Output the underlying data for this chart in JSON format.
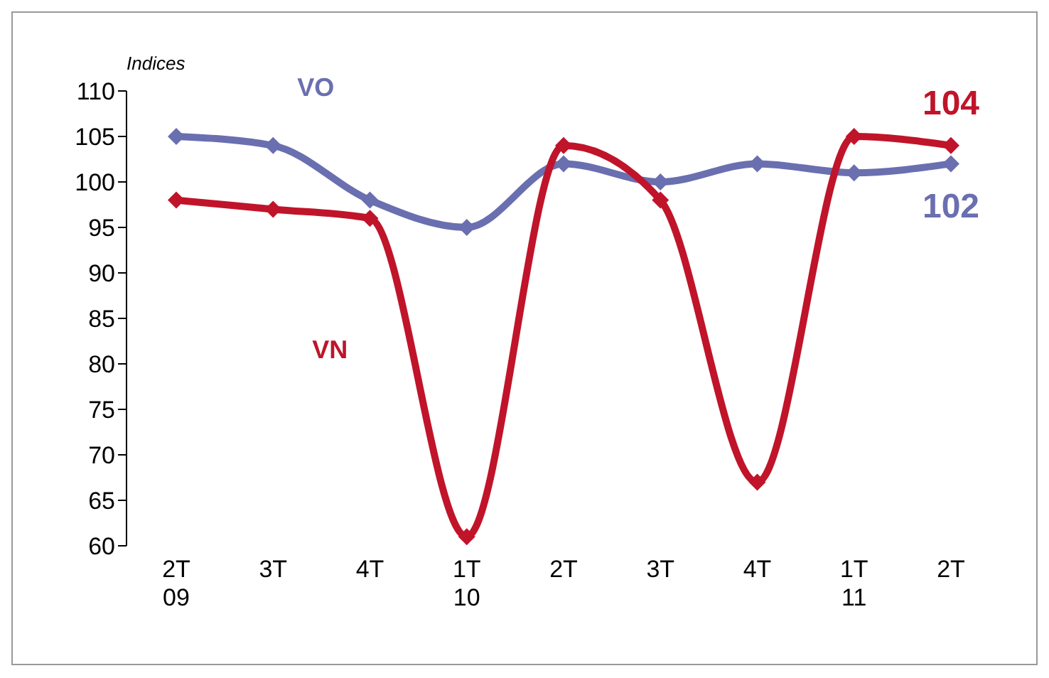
{
  "chart_data": {
    "type": "line",
    "ylabel": "Indices",
    "categories": [
      "2T\n09",
      "3T",
      "4T",
      "1T\n10",
      "2T",
      "3T",
      "4T",
      "1T\n11",
      "2T"
    ],
    "series": [
      {
        "name": "VO",
        "color": "#6a6fb0",
        "values": [
          105,
          104,
          98,
          95,
          102,
          100,
          102,
          101,
          102
        ],
        "value_labels": [
          null,
          null,
          null,
          null,
          null,
          null,
          null,
          null,
          "102"
        ]
      },
      {
        "name": "VN",
        "color": "#c0142a",
        "values": [
          98,
          97,
          96,
          61,
          104,
          98,
          67,
          105,
          104
        ],
        "value_labels": [
          null,
          null,
          null,
          null,
          null,
          null,
          null,
          null,
          "104"
        ]
      }
    ],
    "ylim": [
      60,
      110
    ],
    "yticks": [
      60,
      65,
      70,
      75,
      80,
      85,
      90,
      95,
      100,
      105,
      110
    ],
    "grid": false,
    "legend": false,
    "marker": "diamond",
    "line_style": "solid"
  }
}
